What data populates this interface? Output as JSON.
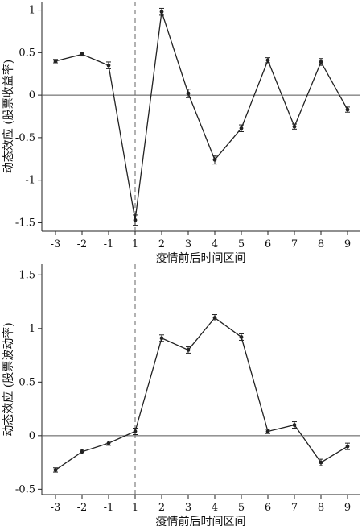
{
  "chart_data": [
    {
      "type": "line",
      "title": "",
      "xlabel": "疫情前后时间区间",
      "ylabel": "动态效应 (股票收益率)",
      "categories": [
        "-3",
        "-2",
        "-1",
        "1",
        "2",
        "3",
        "4",
        "5",
        "6",
        "7",
        "8",
        "9"
      ],
      "values": [
        0.4,
        0.48,
        0.35,
        -1.47,
        0.98,
        0.02,
        -0.76,
        -0.39,
        0.41,
        -0.37,
        0.39,
        -0.17
      ],
      "error": [
        0.02,
        0.02,
        0.04,
        0.06,
        0.04,
        0.05,
        0.05,
        0.04,
        0.03,
        0.03,
        0.04,
        0.03
      ],
      "ylim": [
        -1.6,
        1.1
      ],
      "yticks": [
        1,
        0.5,
        0,
        -0.5,
        -1,
        -1.5
      ],
      "ytick_labels": [
        "1",
        "0.5",
        "0",
        "-0.5",
        "-1",
        "-1.5"
      ],
      "reference_line_y": 0,
      "event_line_x": "1",
      "grid": false,
      "legend": "none"
    },
    {
      "type": "line",
      "title": "",
      "xlabel": "疫情前后时间区间",
      "ylabel": "动态效应 (股票波动率)",
      "categories": [
        "-3",
        "-2",
        "-1",
        "1",
        "2",
        "3",
        "4",
        "5",
        "6",
        "7",
        "8",
        "9"
      ],
      "values": [
        -0.32,
        -0.15,
        -0.07,
        0.04,
        0.91,
        0.8,
        1.1,
        0.92,
        0.04,
        0.1,
        -0.25,
        -0.1
      ],
      "error": [
        0.02,
        0.02,
        0.02,
        0.03,
        0.03,
        0.03,
        0.03,
        0.03,
        0.02,
        0.03,
        0.03,
        0.03
      ],
      "ylim": [
        -0.55,
        1.6
      ],
      "yticks": [
        1.5,
        1,
        0.5,
        0,
        -0.5
      ],
      "ytick_labels": [
        "1.5",
        "1",
        "0.5",
        "0",
        "-0.5"
      ],
      "reference_line_y": 0,
      "event_line_x": "1",
      "grid": false,
      "legend": "none"
    }
  ]
}
